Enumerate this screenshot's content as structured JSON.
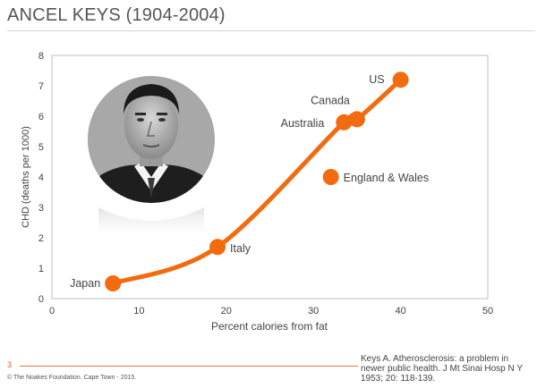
{
  "slide": {
    "title": "ANCEL KEYS (1904-2004)",
    "number": "3",
    "footer": "© The Noakes Foundation. Cape Town - 2015.",
    "citation": "Keys A. Atherosclerosis: a problem in newer public health. J Mt Sinai Hosp N Y 1953; 20: 118-139.",
    "portrait_icon": "portrait-photo-icon"
  },
  "chart_data": {
    "type": "scatter",
    "xlabel": "Percent calories from fat",
    "ylabel": "CHD (deaths per 1000)",
    "xlim": [
      0,
      50
    ],
    "ylim": [
      0,
      8
    ],
    "xticks": [
      0,
      10,
      20,
      30,
      40,
      50
    ],
    "yticks": [
      0,
      1,
      2,
      3,
      4,
      5,
      6,
      7,
      8
    ],
    "grid": false,
    "points": [
      {
        "label": "Japan",
        "x": 7,
        "y": 0.5
      },
      {
        "label": "Italy",
        "x": 19,
        "y": 1.7
      },
      {
        "label": "England & Wales",
        "x": 32,
        "y": 4.0
      },
      {
        "label": "Australia",
        "x": 33.5,
        "y": 5.8
      },
      {
        "label": "Canada",
        "x": 35,
        "y": 5.9
      },
      {
        "label": "US",
        "x": 40,
        "y": 7.2
      }
    ],
    "trend_line": true,
    "colors": {
      "marker": "#f26b0f",
      "line": "#f26b0f",
      "axis": "#bfbfbf",
      "text": "#444444"
    }
  }
}
